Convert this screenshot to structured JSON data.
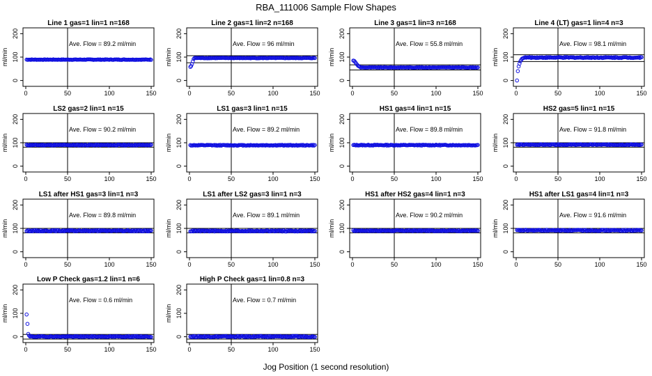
{
  "figure": {
    "title": "RBA_111006  Sample Flow Shapes",
    "xlabel": "Jog Position (1 second resolution)"
  },
  "chart_data": [
    {
      "type": "scatter",
      "title": "Line 1 gas=1 lin=1 n=168",
      "ylabel": "ml/min",
      "annotation": "Ave. Flow =  89.2  ml/min",
      "xlim": [
        0,
        150
      ],
      "ylim": [
        -25,
        225
      ],
      "xticks": [
        0,
        50,
        100,
        150
      ],
      "yticks": [
        0,
        100,
        200
      ],
      "vline": 50,
      "hlines": [],
      "shape": "flat",
      "level": 89.2,
      "noise": 1.2,
      "start": []
    },
    {
      "type": "scatter",
      "title": "Line 2 gas=1 lin=2 n=168",
      "ylabel": "ml/min",
      "annotation": "Ave. Flow =  96  ml/min",
      "xlim": [
        0,
        150
      ],
      "ylim": [
        -25,
        225
      ],
      "xticks": [
        0,
        50,
        100,
        150
      ],
      "yticks": [
        0,
        100,
        200
      ],
      "vline": 50,
      "hlines": [
        76,
        106
      ],
      "shape": "flat",
      "level": 96,
      "noise": 1.2,
      "start": [
        [
          1,
          58
        ],
        [
          2,
          62
        ],
        [
          3,
          70
        ],
        [
          4,
          82
        ],
        [
          5,
          92
        ]
      ]
    },
    {
      "type": "scatter",
      "title": "Line 3 gas=1 lin=3 n=168",
      "ylabel": "ml/min",
      "annotation": "Ave. Flow =  55.8  ml/min",
      "xlim": [
        0,
        150
      ],
      "ylim": [
        -25,
        225
      ],
      "xticks": [
        0,
        50,
        100,
        150
      ],
      "yticks": [
        0,
        100,
        200
      ],
      "vline": 50,
      "hlines": [
        45,
        67
      ],
      "shape": "flat",
      "level": 55.8,
      "noise": 1.2,
      "start": [
        [
          1,
          85
        ],
        [
          2,
          84
        ],
        [
          3,
          80
        ],
        [
          4,
          75
        ],
        [
          5,
          70
        ],
        [
          6,
          66
        ],
        [
          7,
          62
        ],
        [
          8,
          60
        ],
        [
          9,
          58
        ]
      ]
    },
    {
      "type": "scatter",
      "title": "Line 4 (LT) gas=1 lin=4 n=3",
      "ylabel": "ml/min",
      "annotation": "Ave. Flow =  98.1  ml/min",
      "xlim": [
        0,
        150
      ],
      "ylim": [
        -25,
        225
      ],
      "xticks": [
        0,
        50,
        100,
        150
      ],
      "yticks": [
        0,
        100,
        200
      ],
      "vline": 50,
      "hlines": [
        81,
        110
      ],
      "shape": "flat",
      "level": 98.1,
      "noise": 2,
      "start": [
        [
          1,
          0
        ],
        [
          2,
          40
        ],
        [
          3,
          60
        ],
        [
          4,
          72
        ],
        [
          5,
          82
        ],
        [
          6,
          88
        ],
        [
          7,
          93
        ],
        [
          8,
          95
        ]
      ]
    },
    {
      "type": "scatter",
      "title": "LS2 gas=2 lin=1 n=15",
      "ylabel": "ml/min",
      "annotation": "Ave. Flow =  90.2  ml/min",
      "xlim": [
        0,
        150
      ],
      "ylim": [
        -25,
        225
      ],
      "xticks": [
        0,
        50,
        100,
        150
      ],
      "yticks": [
        0,
        100,
        200
      ],
      "vline": 50,
      "hlines": [
        81,
        100
      ],
      "shape": "flat",
      "level": 90.2,
      "noise": 1.8,
      "start": []
    },
    {
      "type": "scatter",
      "title": "LS1 gas=3 lin=1 n=15",
      "ylabel": "ml/min",
      "annotation": "Ave. Flow =  89.2  ml/min",
      "xlim": [
        0,
        150
      ],
      "ylim": [
        -25,
        225
      ],
      "xticks": [
        0,
        50,
        100,
        150
      ],
      "yticks": [
        0,
        100,
        200
      ],
      "vline": 50,
      "hlines": [],
      "shape": "flat",
      "level": 89.2,
      "noise": 1.8,
      "start": []
    },
    {
      "type": "scatter",
      "title": "HS1 gas=4 lin=1 n=15",
      "ylabel": "ml/min",
      "annotation": "Ave. Flow =  89.8  ml/min",
      "xlim": [
        0,
        150
      ],
      "ylim": [
        -25,
        225
      ],
      "xticks": [
        0,
        50,
        100,
        150
      ],
      "yticks": [
        0,
        100,
        200
      ],
      "vline": 50,
      "hlines": [],
      "shape": "flat",
      "level": 89.8,
      "noise": 1.8,
      "start": []
    },
    {
      "type": "scatter",
      "title": "HS2 gas=5 lin=1 n=15",
      "ylabel": "ml/min",
      "annotation": "Ave. Flow =  91.8  ml/min",
      "xlim": [
        0,
        150
      ],
      "ylim": [
        -25,
        225
      ],
      "xticks": [
        0,
        50,
        100,
        150
      ],
      "yticks": [
        0,
        100,
        200
      ],
      "vline": 50,
      "hlines": [
        81,
        100
      ],
      "shape": "flat",
      "level": 91.8,
      "noise": 1.8,
      "start": []
    },
    {
      "type": "scatter",
      "title": "LS1 after HS1 gas=3 lin=1 n=3",
      "ylabel": "ml/min",
      "annotation": "Ave. Flow =  89.8  ml/min",
      "xlim": [
        0,
        150
      ],
      "ylim": [
        -25,
        225
      ],
      "xticks": [
        0,
        50,
        100,
        150
      ],
      "yticks": [
        0,
        100,
        200
      ],
      "vline": 50,
      "hlines": [
        81,
        100
      ],
      "shape": "flat",
      "level": 89.8,
      "noise": 2.5,
      "start": []
    },
    {
      "type": "scatter",
      "title": "LS1 after LS2 gas=3 lin=1 n=3",
      "ylabel": "ml/min",
      "annotation": "Ave. Flow =  89.1  ml/min",
      "xlim": [
        0,
        150
      ],
      "ylim": [
        -25,
        225
      ],
      "xticks": [
        0,
        50,
        100,
        150
      ],
      "yticks": [
        0,
        100,
        200
      ],
      "vline": 50,
      "hlines": [
        81,
        100
      ],
      "shape": "flat",
      "level": 89.1,
      "noise": 2.5,
      "start": []
    },
    {
      "type": "scatter",
      "title": "HS1 after HS2 gas=4 lin=1 n=3",
      "ylabel": "ml/min",
      "annotation": "Ave. Flow =  90.2  ml/min",
      "xlim": [
        0,
        150
      ],
      "ylim": [
        -25,
        225
      ],
      "xticks": [
        0,
        50,
        100,
        150
      ],
      "yticks": [
        0,
        100,
        200
      ],
      "vline": 50,
      "hlines": [
        81,
        100
      ],
      "shape": "flat",
      "level": 90.2,
      "noise": 2,
      "start": []
    },
    {
      "type": "scatter",
      "title": "HS1 after LS1 gas=4 lin=1 n=3",
      "ylabel": "ml/min",
      "annotation": "Ave. Flow =  91.6  ml/min",
      "xlim": [
        0,
        150
      ],
      "ylim": [
        -25,
        225
      ],
      "xticks": [
        0,
        50,
        100,
        150
      ],
      "yticks": [
        0,
        100,
        200
      ],
      "vline": 50,
      "hlines": [
        81,
        100
      ],
      "shape": "flat",
      "level": 91.6,
      "noise": 2.5,
      "start": []
    },
    {
      "type": "scatter",
      "title": "Low P Check gas=1.2 lin=1 n=6",
      "ylabel": "ml/min",
      "annotation": "Ave. Flow =  0.6  ml/min",
      "xlim": [
        0,
        150
      ],
      "ylim": [
        -25,
        225
      ],
      "xticks": [
        0,
        50,
        100,
        150
      ],
      "yticks": [
        0,
        100,
        200
      ],
      "vline": 50,
      "hlines": [
        -10,
        10
      ],
      "shape": "flat",
      "level": 0.6,
      "noise": 2,
      "start": [
        [
          1,
          95
        ],
        [
          2,
          55
        ],
        [
          3,
          12
        ],
        [
          4,
          5
        ]
      ]
    },
    {
      "type": "scatter",
      "title": "High P Check gas=1 lin=0.8 n=3",
      "ylabel": "ml/min",
      "annotation": "Ave. Flow =  0.7  ml/min",
      "xlim": [
        0,
        150
      ],
      "ylim": [
        -25,
        225
      ],
      "xticks": [
        0,
        50,
        100,
        150
      ],
      "yticks": [
        0,
        100,
        200
      ],
      "vline": 50,
      "hlines": [
        -10,
        10
      ],
      "shape": "flat",
      "level": 0.7,
      "noise": 2.5,
      "start": []
    }
  ]
}
